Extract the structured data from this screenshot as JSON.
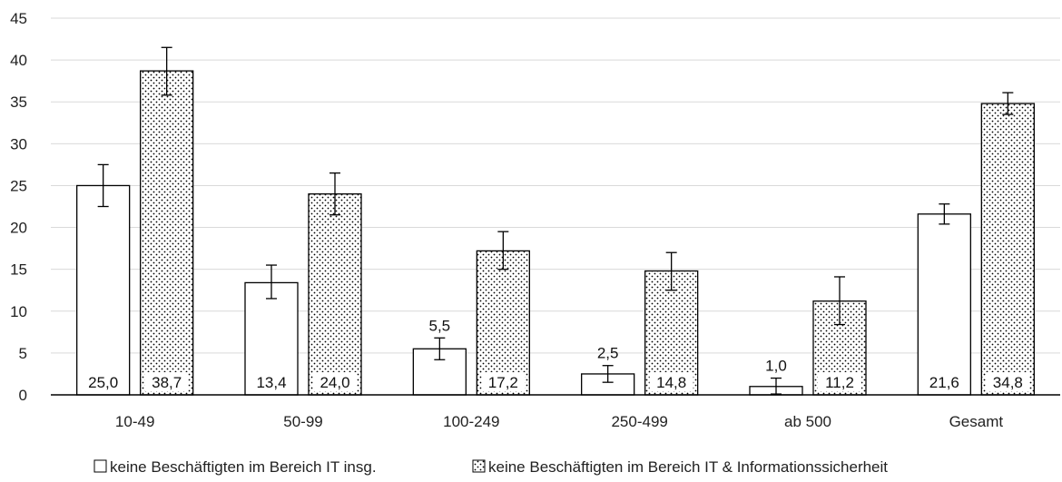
{
  "chart_data": {
    "type": "bar",
    "categories": [
      "10-49",
      "50-99",
      "100-249",
      "250-499",
      "ab 500",
      "Gesamt"
    ],
    "series": [
      {
        "name": "keine Beschäftigten im Bereich IT insg.",
        "pattern": "plain",
        "values": [
          25.0,
          13.4,
          5.5,
          2.5,
          1.0,
          21.6
        ],
        "labels": [
          "25,0",
          "13,4",
          "5,5",
          "2,5",
          "1,0",
          "21,6"
        ],
        "label_position": [
          "inside",
          "inside",
          "above",
          "above",
          "above",
          "inside"
        ],
        "error": [
          [
            22.5,
            27.5
          ],
          [
            11.5,
            15.5
          ],
          [
            4.2,
            6.8
          ],
          [
            1.5,
            3.5
          ],
          [
            0.1,
            2.0
          ],
          [
            20.4,
            22.8
          ]
        ]
      },
      {
        "name": "keine Beschäftigten im Bereich IT & Informationssicherheit",
        "pattern": "dotted",
        "values": [
          38.7,
          24.0,
          17.2,
          14.8,
          11.2,
          34.8
        ],
        "labels": [
          "38,7",
          "24,0",
          "17,2",
          "14,8",
          "11,2",
          "34,8"
        ],
        "label_position": [
          "inside",
          "inside",
          "inside",
          "inside",
          "inside",
          "inside"
        ],
        "error": [
          [
            35.8,
            41.5
          ],
          [
            21.5,
            26.5
          ],
          [
            15.0,
            19.5
          ],
          [
            12.5,
            17.0
          ],
          [
            8.4,
            14.1
          ],
          [
            33.5,
            36.1
          ]
        ]
      }
    ],
    "ylim": [
      0,
      45
    ],
    "yticks": [
      0,
      5,
      10,
      15,
      20,
      25,
      30,
      35,
      40,
      45
    ],
    "grid": true,
    "legend_position": "bottom",
    "colors": {
      "bar_fill": "#ffffff",
      "bar_stroke": "#000000",
      "grid": "#d9d9d9",
      "dot": "#000000"
    }
  }
}
